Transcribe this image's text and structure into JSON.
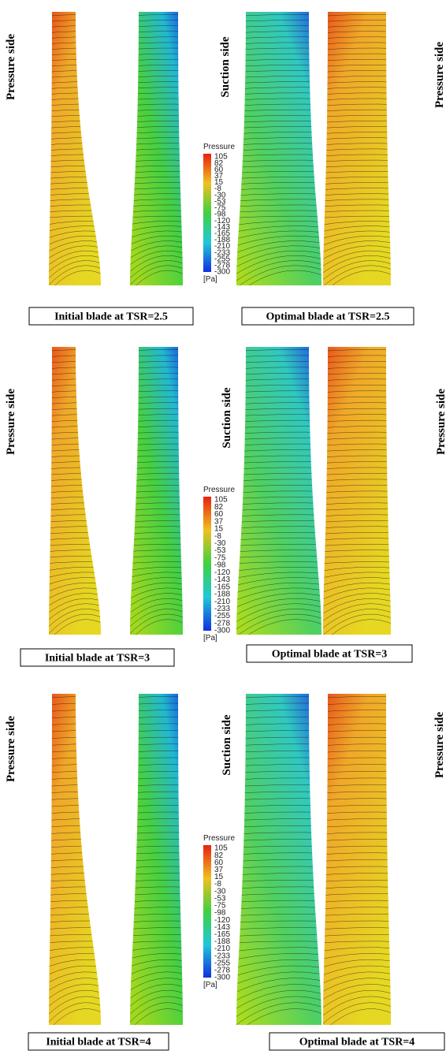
{
  "legend": {
    "title": "Pressure",
    "ticks": [
      "105",
      "82",
      "60",
      "37",
      "15",
      "-8",
      "-30",
      "-53",
      "-75",
      "-98",
      "-120",
      "-143",
      "-165",
      "-188",
      "-210",
      "-233",
      "-255",
      "-278",
      "-300"
    ],
    "unit": "[Pa]"
  },
  "panels": [
    {
      "pressure_label_left": "Pressure side",
      "suction_label": "Suction side",
      "pressure_label_right": "Pressure side",
      "caption_initial": "Initial blade at TSR=2.5",
      "caption_optimal": "Optimal blade at TSR=2.5"
    },
    {
      "pressure_label_left": "Pressure side",
      "suction_label": "Suction side",
      "pressure_label_right": "Pressure side",
      "caption_initial": "Initial blade at TSR=3",
      "caption_optimal": "Optimal blade at TSR=3"
    },
    {
      "pressure_label_left": "Pressure side",
      "suction_label": "Suction side",
      "pressure_label_right": "Pressure side",
      "caption_initial": "Initial blade at TSR=4",
      "caption_optimal": "Optimal blade at TSR=4"
    }
  ]
}
